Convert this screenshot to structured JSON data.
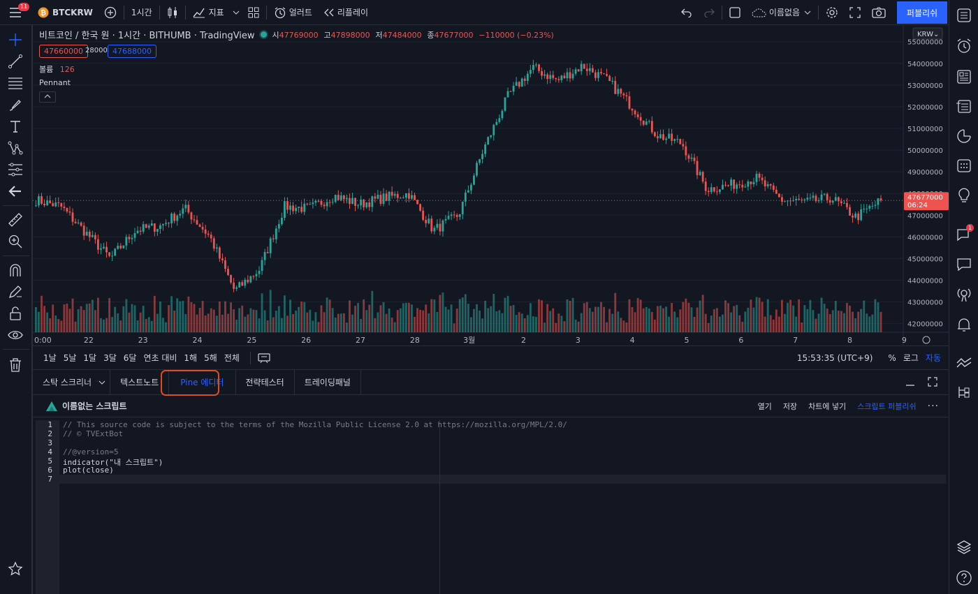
{
  "topbar": {
    "menu_badge": "11",
    "symbol": "BTCKRW",
    "interval": "1시간",
    "indicators": "지표",
    "alert": "얼러트",
    "replay": "리플레이",
    "layout_name": "이름없음",
    "publish": "퍼블리쉬"
  },
  "legend": {
    "title": "비트코인 / 한국 원 · 1시간 · BITHUMB · TradingView",
    "open_label": "시",
    "open": "47769000",
    "high_label": "고",
    "high": "47898000",
    "low_label": "저",
    "low": "47484000",
    "close_label": "종",
    "close": "47677000",
    "change": "−110000 (−0.23%)",
    "bid": "47660000",
    "spread": "28000",
    "ask": "47688000",
    "volume_label": "볼륨",
    "volume": "126",
    "pennant": "Pennant"
  },
  "chart_data": {
    "type": "candlestick",
    "currency": "KRW",
    "y_ticks": [
      "55000000",
      "54000000",
      "53000000",
      "52000000",
      "51000000",
      "50000000",
      "49000000",
      "48000000",
      "47000000",
      "46000000",
      "45000000",
      "44000000",
      "43000000",
      "42000000"
    ],
    "x_ticks": [
      "0:00",
      "22",
      "23",
      "24",
      "25",
      "26",
      "27",
      "28",
      "3월",
      "2",
      "3",
      "4",
      "5",
      "6",
      "7",
      "8",
      "9"
    ],
    "last_price": "47677000",
    "countdown": "06:24",
    "ylim": [
      41600000,
      55700000
    ],
    "approx_close_path": [
      {
        "x": "21 0:00",
        "y": 47700000
      },
      {
        "x": "21 12:00",
        "y": 47400000
      },
      {
        "x": "21 18:00",
        "y": 46200000
      },
      {
        "x": "22 06:00",
        "y": 45000000
      },
      {
        "x": "22 18:00",
        "y": 46300000
      },
      {
        "x": "23 12:00",
        "y": 46500000
      },
      {
        "x": "24 00:00",
        "y": 47300000
      },
      {
        "x": "24 12:00",
        "y": 46000000
      },
      {
        "x": "24 18:00",
        "y": 43500000
      },
      {
        "x": "25 00:00",
        "y": 44500000
      },
      {
        "x": "25 06:00",
        "y": 47400000
      },
      {
        "x": "25 18:00",
        "y": 47300000
      },
      {
        "x": "26 06:00",
        "y": 47900000
      },
      {
        "x": "26 18:00",
        "y": 47500000
      },
      {
        "x": "27 12:00",
        "y": 47800000
      },
      {
        "x": "28 00:00",
        "y": 48000000
      },
      {
        "x": "28 12:00",
        "y": 46300000
      },
      {
        "x": "3월 1 00:00",
        "y": 47000000
      },
      {
        "x": "3월 1 06:00",
        "y": 50000000
      },
      {
        "x": "3월 1 12:00",
        "y": 52500000
      },
      {
        "x": "3월 2 00:00",
        "y": 53800000
      },
      {
        "x": "3월 2 12:00",
        "y": 53200000
      },
      {
        "x": "3월 3 00:00",
        "y": 53900000
      },
      {
        "x": "3월 3 12:00",
        "y": 53200000
      },
      {
        "x": "3월 4 00:00",
        "y": 52000000
      },
      {
        "x": "3월 4 12:00",
        "y": 50700000
      },
      {
        "x": "3월 5 00:00",
        "y": 50300000
      },
      {
        "x": "3월 5 06:00",
        "y": 48200000
      },
      {
        "x": "3월 6 00:00",
        "y": 48400000
      },
      {
        "x": "3월 6 12:00",
        "y": 48700000
      },
      {
        "x": "3월 7 00:00",
        "y": 47700000
      },
      {
        "x": "3월 7 12:00",
        "y": 47600000
      },
      {
        "x": "3월 8 00:00",
        "y": 47800000
      },
      {
        "x": "3월 8 12:00",
        "y": 46900000
      },
      {
        "x": "3월 9 00:00",
        "y": 47677000
      }
    ]
  },
  "timebar": {
    "ranges": [
      "1날",
      "5날",
      "1달",
      "3달",
      "6달",
      "연초 대비",
      "1해",
      "5해",
      "전체"
    ],
    "clock": "15:53:35 (UTC+9)",
    "percent": "%",
    "log": "로그",
    "auto": "자동"
  },
  "bottom_panel": {
    "tabs": [
      "스탁 스크리너",
      "텍스트노트",
      "Pine 에디터",
      "전략테스터",
      "트레이딩패널"
    ],
    "active_tab": "Pine 에디터",
    "script_title": "이름없는 스크립트",
    "actions": [
      "열기",
      "저장",
      "차트에 넣기",
      "스크립트 퍼블리쉬"
    ]
  },
  "editor": {
    "lines": [
      "// This source code is subject to the terms of the Mozilla Public License 2.0 at https://mozilla.org/MPL/2.0/",
      "// © TVExtBot",
      "",
      "//@version=5",
      "indicator(\"내 스크립트\")",
      "plot(close)",
      ""
    ]
  },
  "right_badge": "1",
  "colors": {
    "bg": "#131722",
    "up": "#26a69a",
    "down": "#ef5350",
    "accent": "#2962ff"
  }
}
